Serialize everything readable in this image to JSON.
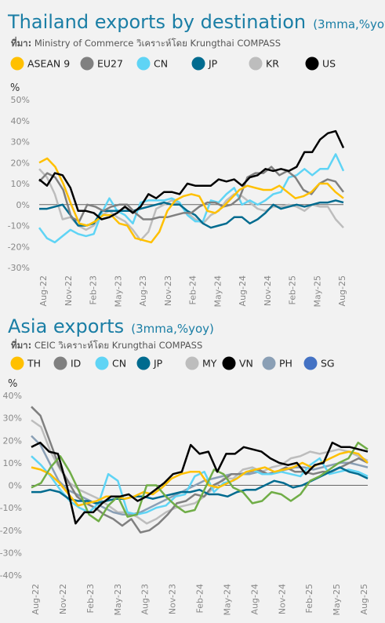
{
  "chart_data": [
    {
      "type": "line",
      "title": "Thailand exports by destination",
      "subtitle": "(3mma,%yoy)",
      "source_label": "ที่มา:",
      "source": "Ministry of Commerce วิเคราะห์โดย Krungthai COMPASS",
      "ylabel": "%",
      "ylim": [
        -30,
        50
      ],
      "yticks": [
        "-30%",
        "-20%",
        "-10%",
        "0%",
        "10%",
        "20%",
        "30%",
        "40%",
        "50%"
      ],
      "xticks": [
        "Aug-22",
        "Nov-22",
        "Feb-23",
        "May-23",
        "Aug-23",
        "Nov-23",
        "Feb-24",
        "May-24",
        "Aug-24",
        "Nov-24",
        "Feb-25",
        "May-25",
        "Aug-25"
      ],
      "legend_position": "top",
      "series": [
        {
          "name": "ASEAN 9",
          "color": "#ffc000",
          "values": [
            20,
            22,
            18,
            10,
            0,
            -9,
            -10,
            -8,
            -5,
            -5,
            -9,
            -10,
            -16,
            -17,
            -18,
            -13,
            -3,
            2,
            4,
            5,
            4,
            -3,
            -4,
            -1,
            3,
            7,
            9,
            8,
            7,
            7,
            9,
            6,
            3,
            4,
            6,
            10,
            10,
            6,
            3
          ]
        },
        {
          "name": "EU27",
          "color": "#808080",
          "values": [
            11,
            15,
            13,
            7,
            -6,
            -8,
            0,
            -1,
            -3,
            -1,
            0,
            0,
            -4,
            -7,
            -7,
            -6,
            -6,
            -5,
            -4,
            -4,
            -1,
            1,
            1,
            -1,
            0,
            3,
            13,
            15,
            15,
            18,
            14,
            16,
            13,
            7,
            5,
            10,
            12,
            11,
            6
          ]
        },
        {
          "name": "CN",
          "color": "#5fd4f5",
          "values": [
            -11,
            -16,
            -18,
            -15,
            -12,
            -14,
            -15,
            -14,
            -4,
            3,
            -3,
            -5,
            -9,
            1,
            2,
            2,
            2,
            3,
            1,
            -5,
            -8,
            -8,
            2,
            1,
            5,
            8,
            0,
            2,
            0,
            2,
            5,
            6,
            13,
            14,
            17,
            14,
            17,
            17,
            24,
            16
          ]
        },
        {
          "name": "JP",
          "color": "#006b8f",
          "values": [
            -2,
            -2,
            -1,
            0,
            -5,
            -10,
            -10,
            -9,
            -3,
            -3,
            -3,
            -3,
            -3,
            -2,
            -1,
            0,
            1,
            0,
            0,
            -3,
            -5,
            -9,
            -11,
            -10,
            -9,
            -6,
            -6,
            -9,
            -7,
            -4,
            0,
            -2,
            -1,
            0,
            -1,
            0,
            1,
            1,
            2,
            1
          ]
        },
        {
          "name": "KR",
          "color": "#bdbdbd",
          "values": [
            17,
            13,
            5,
            -7,
            -6,
            -10,
            -12,
            -10,
            -5,
            -3,
            -6,
            -8,
            -12,
            -17,
            -13,
            -2,
            0,
            2,
            0,
            -4,
            -7,
            -9,
            -5,
            -3,
            2,
            5,
            4,
            1,
            -2,
            -3,
            -1,
            -1,
            0,
            -1,
            -3,
            0,
            -1,
            -1,
            -7,
            -11
          ]
        },
        {
          "name": "US",
          "color": "#000000",
          "values": [
            12,
            9,
            15,
            14,
            8,
            -3,
            -3,
            -4,
            -7,
            -6,
            -4,
            -1,
            -4,
            -1,
            5,
            3,
            6,
            6,
            5,
            10,
            9,
            9,
            9,
            12,
            11,
            12,
            9,
            13,
            14,
            17,
            16,
            17,
            16,
            18,
            25,
            25,
            31,
            34,
            35,
            27
          ]
        }
      ]
    },
    {
      "type": "line",
      "title": "Asia exports",
      "subtitle": "(3mma,%yoy)",
      "source_label": "ที่มา:",
      "source": "CEIC วิเคราะห์โดย Krungthai COMPASS",
      "ylabel": "%",
      "ylim": [
        -40,
        40
      ],
      "yticks": [
        "-40%",
        "-30%",
        "-20%",
        "-10%",
        "0%",
        "10%",
        "20%",
        "30%",
        "40%"
      ],
      "xticks": [
        "Aug-22",
        "Nov-22",
        "Feb-23",
        "May-23",
        "Aug-23",
        "Nov-23",
        "Feb-24",
        "May-24",
        "Aug-24",
        "Nov-24",
        "Feb-25",
        "May-25",
        "Aug-25"
      ],
      "legend_position": "top",
      "series": [
        {
          "name": "TH",
          "color": "#ffc000",
          "values": [
            8,
            7,
            5,
            1,
            -4,
            -9,
            -8,
            -7,
            -5,
            -5,
            -6,
            -5,
            -3,
            -4,
            -1,
            3,
            5,
            6,
            6,
            0,
            -1,
            1,
            3,
            6,
            7,
            8,
            6,
            7,
            8,
            10,
            8,
            10,
            12,
            14,
            15,
            14,
            10
          ]
        },
        {
          "name": "ID",
          "color": "#808080",
          "values": [
            35,
            31,
            20,
            9,
            2,
            -5,
            -8,
            -10,
            -13,
            -15,
            -18,
            -15,
            -21,
            -20,
            -17,
            -13,
            -8,
            -7,
            -4,
            -5,
            0,
            2,
            5,
            5,
            6,
            7,
            5,
            6,
            8,
            6,
            6,
            5,
            6,
            6,
            8,
            10,
            12,
            10
          ]
        },
        {
          "name": "CN",
          "color": "#5fd4f5",
          "values": [
            13,
            9,
            4,
            -2,
            -7,
            -10,
            -12,
            -8,
            5,
            2,
            -12,
            -13,
            -12,
            -10,
            -9,
            -5,
            -4,
            4,
            6,
            -3,
            1,
            2,
            5,
            7,
            5,
            5,
            6,
            5,
            4,
            9,
            12,
            5,
            6,
            7,
            6,
            4
          ]
        },
        {
          "name": "JP",
          "color": "#006b8f",
          "values": [
            -3,
            -3,
            -2,
            -3,
            -6,
            -7,
            -7,
            -8,
            -7,
            -6,
            -6,
            -5,
            -5,
            -6,
            -5,
            -4,
            -3,
            -3,
            -2,
            -4,
            -4,
            -5,
            -3,
            -2,
            -2,
            0,
            2,
            1,
            -1,
            0,
            2,
            4,
            6,
            8,
            6,
            5,
            3
          ]
        },
        {
          "name": "MY",
          "color": "#bdbdbd",
          "values": [
            29,
            26,
            15,
            7,
            1,
            -2,
            -4,
            -6,
            -9,
            -12,
            -12,
            -14,
            -17,
            -15,
            -12,
            -10,
            -9,
            -8,
            -5,
            -1,
            3,
            3,
            7,
            8,
            6,
            8,
            9,
            12,
            13,
            15,
            14,
            15,
            16,
            15,
            13,
            11
          ]
        },
        {
          "name": "VN",
          "color": "#000000",
          "values": [
            17,
            19,
            15,
            14,
            0,
            -17,
            -12,
            -12,
            -8,
            -5,
            -5,
            -4,
            -7,
            -5,
            -2,
            1,
            5,
            6,
            18,
            14,
            15,
            6,
            14,
            14,
            17,
            16,
            15,
            12,
            10,
            9,
            10,
            5,
            9,
            10,
            19,
            17,
            17,
            16,
            15
          ]
        },
        {
          "name": "PH",
          "color": "#8a9fb5",
          "values": [
            22,
            18,
            10,
            2,
            -2,
            -4,
            -6,
            -8,
            -10,
            -12,
            -13,
            -13,
            -12,
            -10,
            -8,
            -6,
            -4,
            -2,
            0,
            2,
            3,
            4,
            5,
            5,
            5,
            6,
            5,
            6,
            7,
            8,
            8,
            7,
            8,
            9,
            10,
            10,
            9,
            8
          ]
        },
        {
          "name": "SG",
          "color": "#4472c4",
          "values": []
        },
        {
          "name": "",
          "color": "#70ad47",
          "values": [
            -1,
            1,
            8,
            13,
            6,
            -3,
            -13,
            -16,
            -9,
            -5,
            -14,
            -13,
            0,
            0,
            -5,
            -9,
            -12,
            -11,
            -2,
            7,
            5,
            -1,
            -3,
            -8,
            -7,
            -3,
            -4,
            -7,
            -4,
            2,
            4,
            7,
            10,
            12,
            19,
            16
          ]
        }
      ]
    }
  ]
}
